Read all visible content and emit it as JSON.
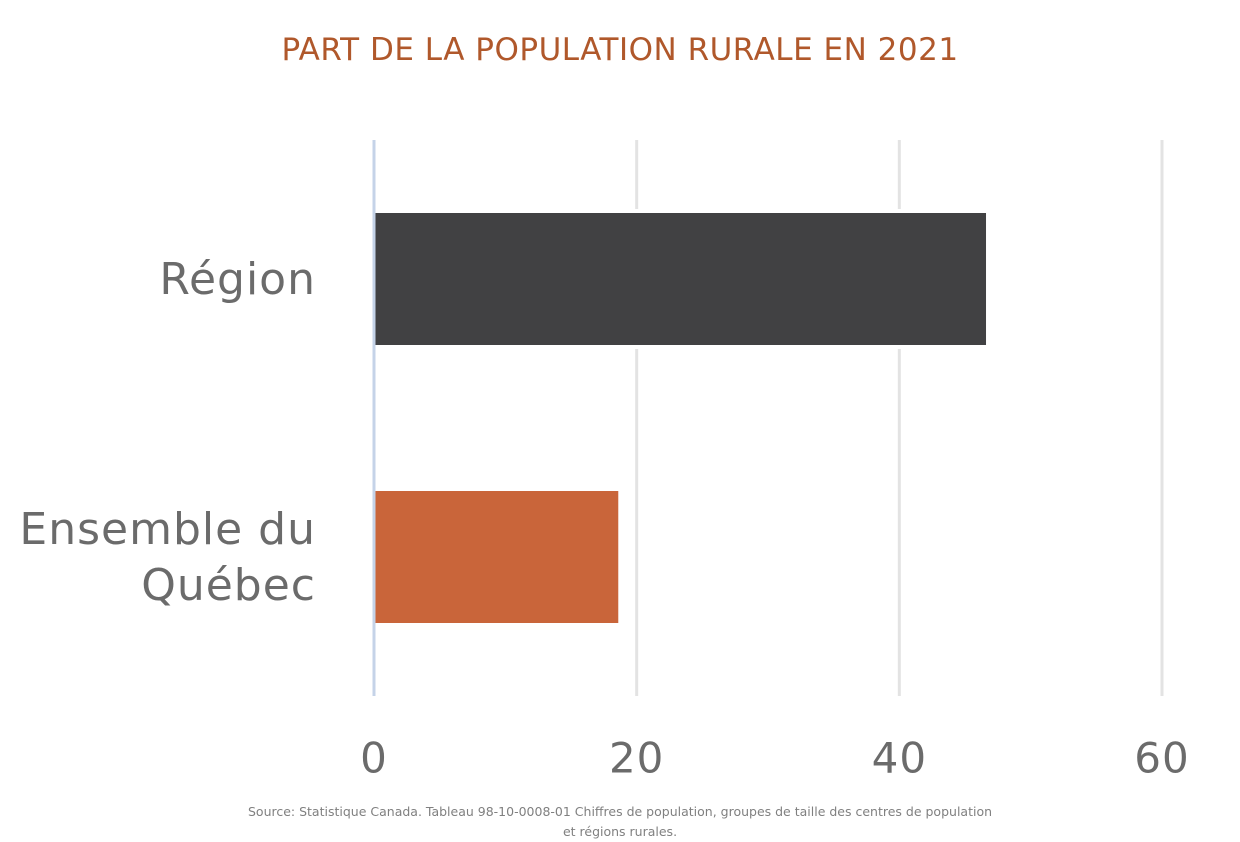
{
  "chart_data": {
    "type": "bar",
    "orientation": "horizontal",
    "title": "PART DE LA POPULATION RURALE EN 2021",
    "categories": [
      "Région",
      "Ensemble du Québec"
    ],
    "values": [
      46.6,
      18.6
    ],
    "bar_colors": [
      "#414143",
      "#c9653a"
    ],
    "xlim": [
      0,
      60
    ],
    "xticks": [
      0,
      20,
      40,
      60
    ],
    "xlabel": "",
    "ylabel": "",
    "grid": true,
    "legend": "none",
    "source": "Source: Statistique Canada. Tableau 98-10-0008-01  Chiffres de population, groupes de taille des centres de population et régions rurales."
  },
  "colors": {
    "title": "#b0582b",
    "axis_text": "#6b6b6b",
    "gridline": "#e3e3e3",
    "axis_line": "#c5d3e8"
  }
}
